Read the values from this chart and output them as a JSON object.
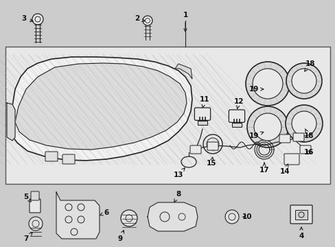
{
  "bg_color": "#cccccc",
  "box_bg": "#e8e8e8",
  "box_border": "#444444",
  "lc": "#222222",
  "tc": "#111111",
  "fig_width": 4.89,
  "fig_height": 3.6,
  "dpi": 100
}
